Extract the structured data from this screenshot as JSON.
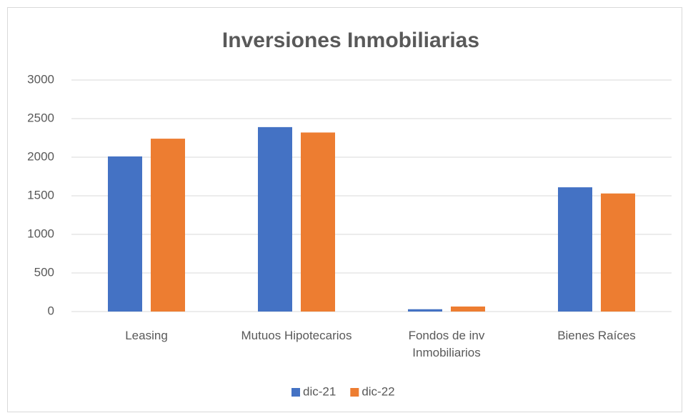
{
  "chart_data": {
    "type": "bar",
    "title": "Inversiones Inmobiliarias",
    "categories": [
      "Leasing",
      "Mutuos Hipotecarios",
      "Fondos de inv Inmobiliarios",
      "Bienes Raíces"
    ],
    "series": [
      {
        "name": "dic-21",
        "color": "#4472c4",
        "values": [
          2010,
          2390,
          30,
          1610
        ]
      },
      {
        "name": "dic-22",
        "color": "#ed7d31",
        "values": [
          2240,
          2320,
          65,
          1530
        ]
      }
    ],
    "ylim": [
      0,
      3000
    ],
    "yticks": [
      0,
      500,
      1000,
      1500,
      2000,
      2500,
      3000
    ],
    "grid": true,
    "legend": "bottom"
  }
}
